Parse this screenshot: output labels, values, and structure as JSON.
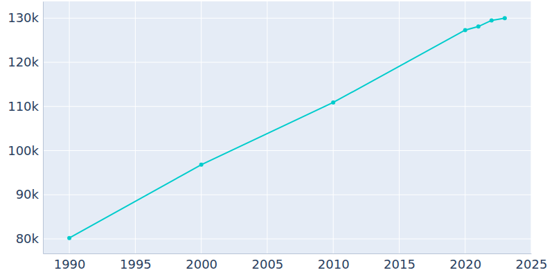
{
  "chart_data": {
    "type": "line",
    "x": [
      1990,
      2000,
      2010,
      2020,
      2021,
      2022,
      2023
    ],
    "values": [
      80200,
      96800,
      110900,
      127300,
      128100,
      129500,
      130000
    ],
    "color": "#00cccc",
    "marker": "circle",
    "xlim": [
      1988,
      2025
    ],
    "xticks": [
      1990,
      1995,
      2000,
      2005,
      2010,
      2015,
      2020,
      2025
    ],
    "ylim": [
      76700,
      133800
    ],
    "yticks": [
      {
        "value": 80000,
        "label": "80k"
      },
      {
        "value": 90000,
        "label": "90k"
      },
      {
        "value": 100000,
        "label": "100k"
      },
      {
        "value": 110000,
        "label": "110k"
      },
      {
        "value": 120000,
        "label": "120k"
      },
      {
        "value": 130000,
        "label": "130k"
      }
    ],
    "grid": true
  }
}
